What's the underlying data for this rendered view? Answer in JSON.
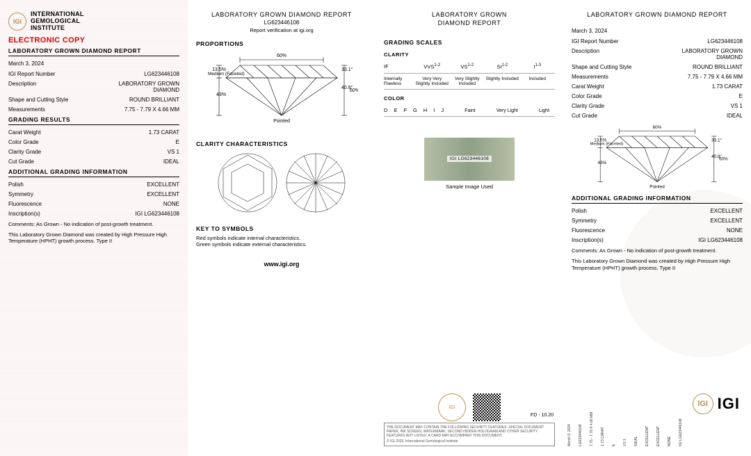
{
  "institute": {
    "line1": "INTERNATIONAL",
    "line2": "GEMOLOGICAL",
    "line3": "INSTITUTE"
  },
  "electronic_copy": "ELECTRONIC COPY",
  "report_title": "LABORATORY GROWN DIAMOND REPORT",
  "report_title_2line_a": "LABORATORY GROWN",
  "report_title_2line_b": "DIAMOND REPORT",
  "date": "March 3, 2024",
  "fields": {
    "report_no_label": "IGI Report Number",
    "report_no": "LG623446108",
    "description_label": "Description",
    "description": "LABORATORY GROWN DIAMOND",
    "shape_label": "Shape and Cutting Style",
    "shape": "ROUND BRILLIANT",
    "measurements_label": "Measurements",
    "measurements": "7.75 - 7.79 X 4.66 MM"
  },
  "grading_results_title": "GRADING RESULTS",
  "grading": {
    "carat_label": "Carat Weight",
    "carat": "1.73 CARAT",
    "color_label": "Color Grade",
    "color": "E",
    "clarity_label": "Clarity Grade",
    "clarity": "VS 1",
    "cut_label": "Cut Grade",
    "cut": "IDEAL"
  },
  "additional_title": "ADDITIONAL GRADING INFORMATION",
  "additional": {
    "polish_label": "Polish",
    "polish": "EXCELLENT",
    "symmetry_label": "Symmetry",
    "symmetry": "EXCELLENT",
    "fluor_label": "Fluorescence",
    "fluor": "NONE",
    "inscription_label": "Inscription(s)",
    "inscription": "IGI LG623446108"
  },
  "comments": "Comments: As Grown - No indication of post-growth treatment.",
  "growth_note": "This Laboratory Grown Diamond was created by High Pressure High Temperature (HPHT) growth process. Type II",
  "col2": {
    "verify": "Report verification at igi.org",
    "proportions_title": "PROPORTIONS",
    "clarity_title": "CLARITY CHARACTERISTICS",
    "key_title": "KEY TO SYMBOLS",
    "key_red": "Red symbols indicate internal characteristics.",
    "key_green": "Green symbols indicate external characteristics.",
    "www": "www.igi.org"
  },
  "proportions": {
    "table_pct": "60%",
    "crown_angle": "33.1°",
    "pavilion_angle": "40.8°",
    "depth_pct": "60%",
    "crown_height": "13.5%",
    "pavilion_depth": "43%",
    "girdle": "Medium (Faceted)",
    "culet": "Pointed"
  },
  "scales": {
    "title": "GRADING SCALES",
    "clarity_label": "CLARITY",
    "clarity_heads": [
      "IF",
      "VVS",
      "VS",
      "SI",
      "I"
    ],
    "clarity_sup": [
      "",
      "1-2",
      "1-2",
      "1-2",
      "1-3"
    ],
    "clarity_desc": [
      "Internally Flawless",
      "Very Very Slightly Included",
      "Very Slightly Included",
      "Slightly Included",
      "Included"
    ],
    "color_label": "COLOR",
    "color_letters": [
      "D",
      "E",
      "F",
      "G",
      "H",
      "I",
      "J"
    ],
    "color_groups": [
      "Faint",
      "Very Light",
      "Light"
    ]
  },
  "sample": {
    "strip": "IGI LG623446108",
    "label": "Sample Image Used"
  },
  "copyright": "© IGI 2020, International Gemological Institute",
  "fd": "FD - 10.20",
  "igi_text": "IGI",
  "disclaimer": "THE DOCUMENT MAY CONTAIN THE FOLLOWING SECURITY FEATURES: SPECIAL DOCUMENT PAPER, INK SCREEN, WATERMARK, SECOND HIDDEN HOLOGRAM AND OTHER SECURITY FEATURES NOT LISTED. A CARD MAY ACCOMPANY THIS DOCUMENT."
}
